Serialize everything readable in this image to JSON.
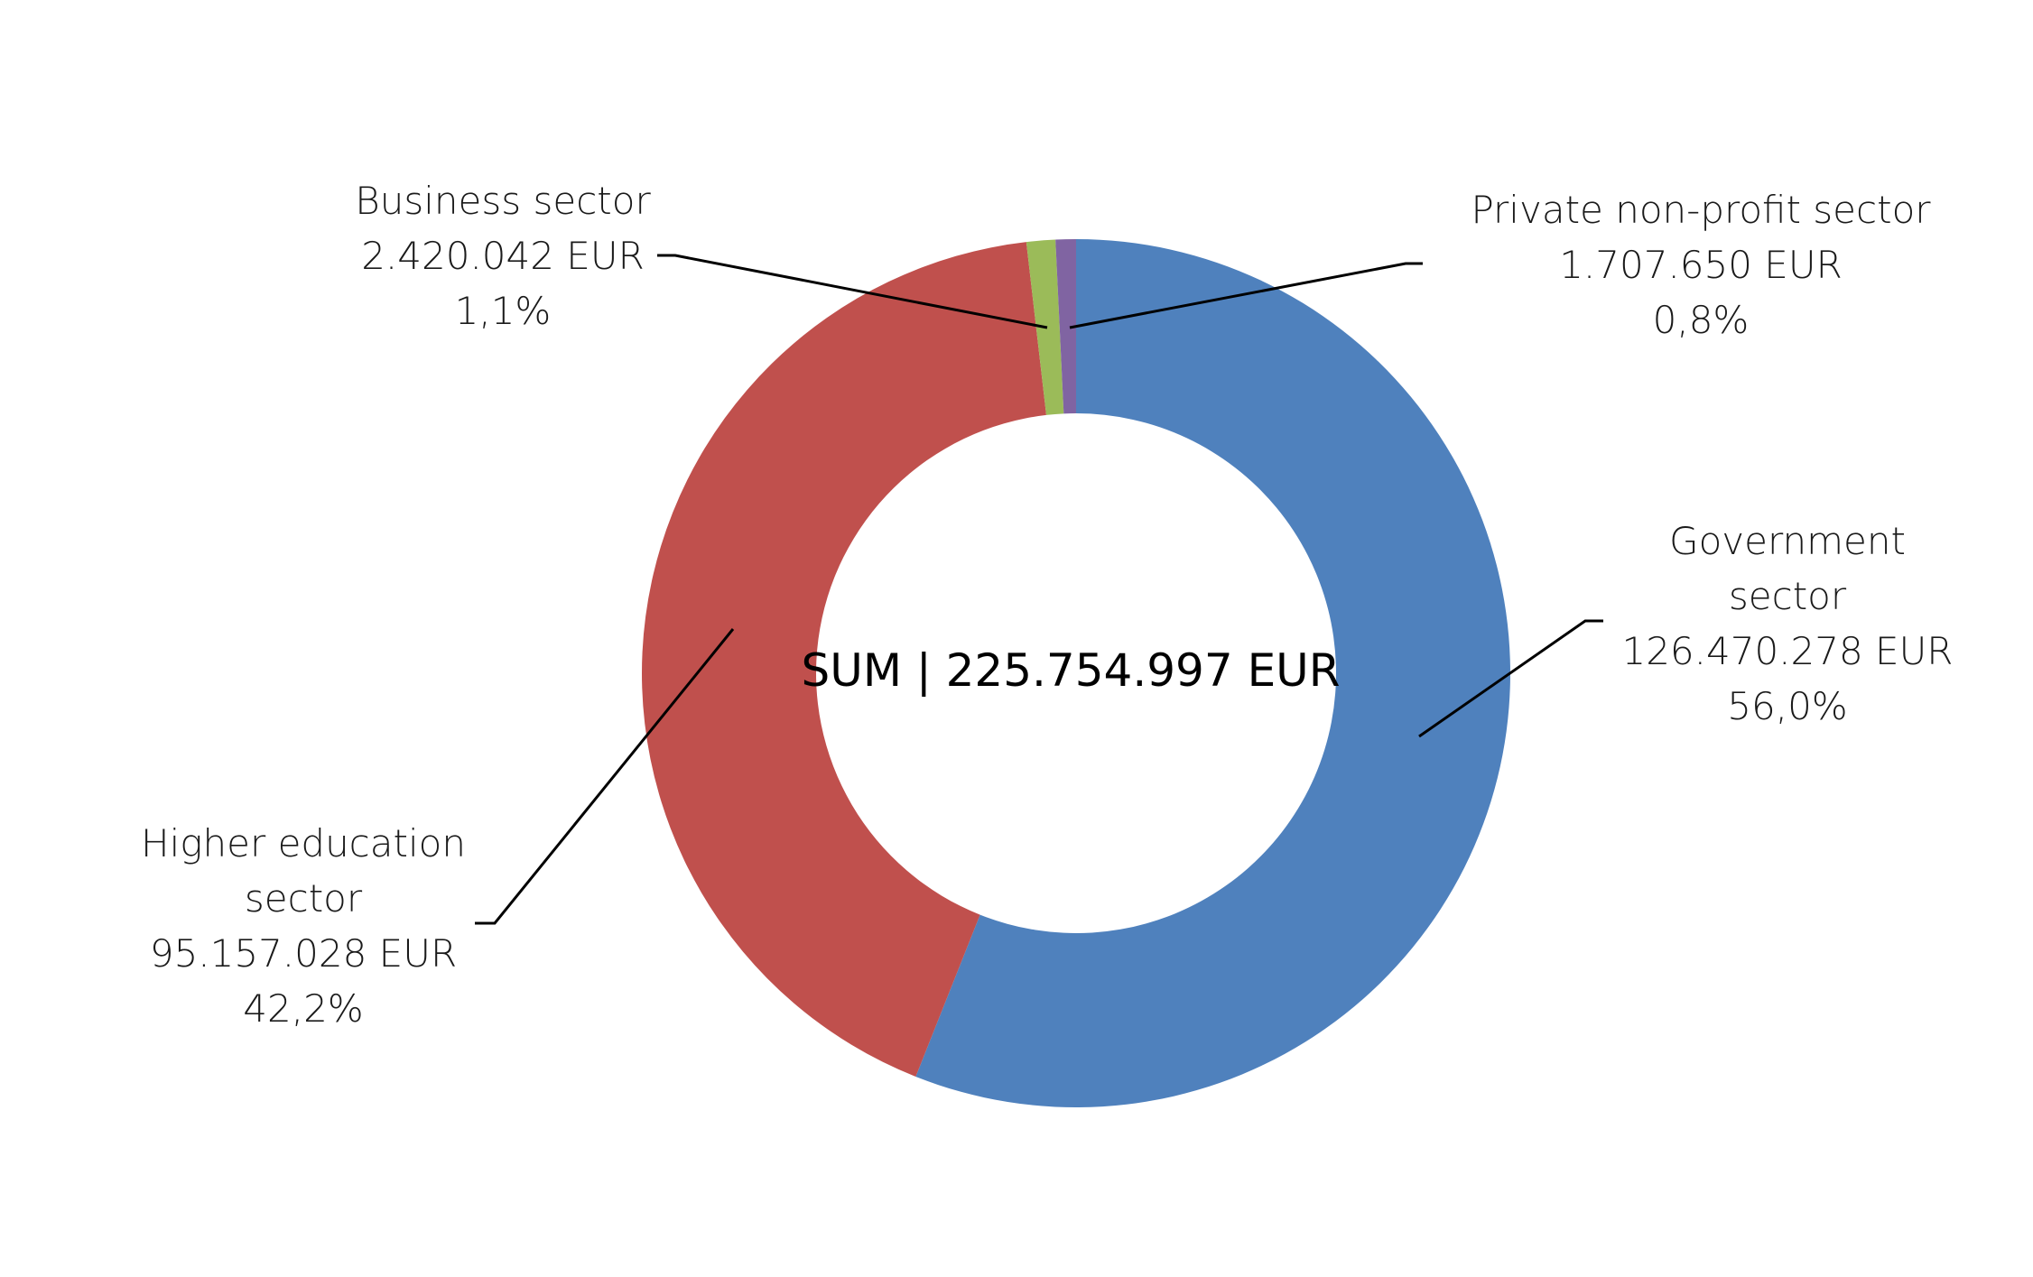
{
  "chart_data": {
    "type": "pie",
    "variant": "donut",
    "center_label": "SUM | 225.754.997 EUR",
    "slices": [
      {
        "label": "Government sector",
        "label_lines": [
          "Government",
          "sector"
        ],
        "value": 126470278,
        "value_text": "126.470.278 EUR",
        "percent_text": "56,0%",
        "color": "#4F81BD"
      },
      {
        "label": "Higher education sector",
        "label_lines": [
          "Higher education",
          "sector"
        ],
        "value": 95157028,
        "value_text": "95.157.028 EUR",
        "percent_text": "42,2%",
        "color": "#C0504D"
      },
      {
        "label": "Business sector",
        "label_lines": [
          "Business sector"
        ],
        "value": 2420042,
        "value_text": "2.420.042 EUR",
        "percent_text": "1,1%",
        "color": "#9BBB59"
      },
      {
        "label": "Private non-profit sector",
        "label_lines": [
          "Private non-profit sector"
        ],
        "value": 1707650,
        "value_text": "1.707.650 EUR",
        "percent_text": "0,8%",
        "color": "#8064A2"
      }
    ]
  }
}
